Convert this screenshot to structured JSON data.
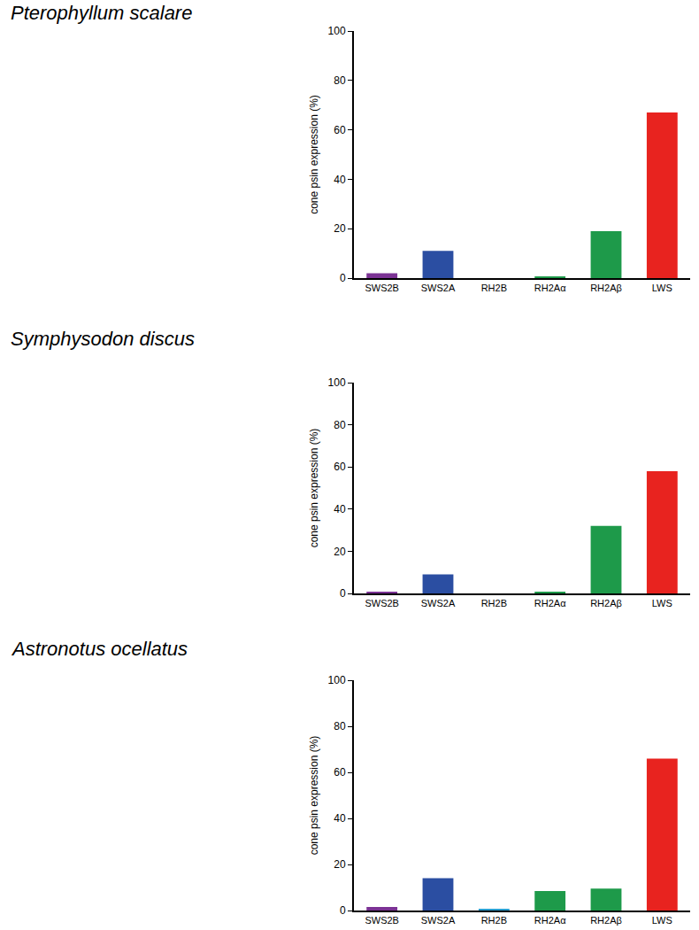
{
  "chart_data": [
    {
      "type": "bar",
      "title": "Pterophyllum scalare",
      "y_label": "cone psin expression (%)",
      "categories": [
        "SWS2B",
        "SWS2A",
        "RH2B",
        "RH2Aα",
        "RH2Aβ",
        "LWS"
      ],
      "values": [
        2,
        11,
        0,
        0.5,
        19,
        67
      ],
      "colors": [
        "#7b3294",
        "#2b4ea2",
        "#2a9fd0",
        "#1e9a4a",
        "#1e9a4a",
        "#e8231f"
      ],
      "ylim": [
        0,
        100
      ],
      "yticks": [
        0,
        20,
        40,
        60,
        80,
        100
      ],
      "grid": false
    },
    {
      "type": "bar",
      "title": "Symphysodon discus",
      "y_label": "cone psin expression (%)",
      "categories": [
        "SWS2B",
        "SWS2A",
        "RH2B",
        "RH2Aα",
        "RH2Aβ",
        "LWS"
      ],
      "values": [
        0.5,
        9,
        0,
        0.5,
        32,
        58
      ],
      "colors": [
        "#7b3294",
        "#2b4ea2",
        "#2a9fd0",
        "#1e9a4a",
        "#1e9a4a",
        "#e8231f"
      ],
      "ylim": [
        0,
        100
      ],
      "yticks": [
        0,
        20,
        40,
        60,
        80,
        100
      ],
      "grid": false
    },
    {
      "type": "bar",
      "title": "Astronotus ocellatus",
      "y_label": "cone psin expression (%)",
      "categories": [
        "SWS2B",
        "SWS2A",
        "RH2B",
        "RH2Aα",
        "RH2Aβ",
        "LWS"
      ],
      "values": [
        1.5,
        14,
        0.5,
        8.5,
        9.5,
        66
      ],
      "colors": [
        "#7b3294",
        "#2b4ea2",
        "#2a9fd0",
        "#1e9a4a",
        "#1e9a4a",
        "#e8231f"
      ],
      "ylim": [
        0,
        100
      ],
      "yticks": [
        0,
        20,
        40,
        60,
        80,
        100
      ],
      "grid": false
    }
  ]
}
